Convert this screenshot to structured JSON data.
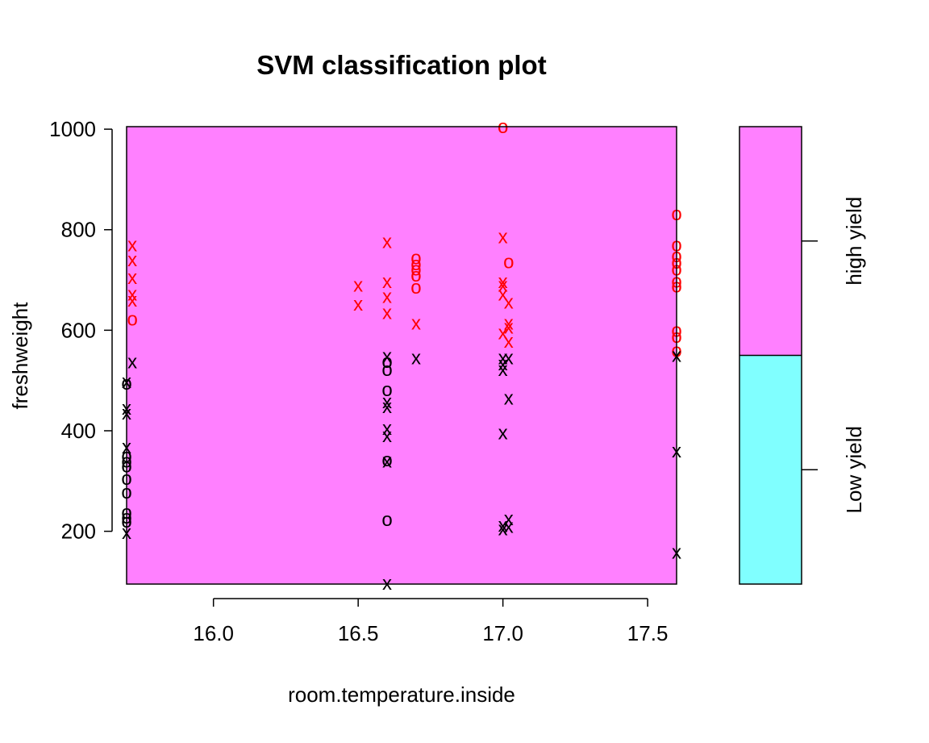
{
  "chart_data": {
    "type": "scatter",
    "title": "SVM classification plot",
    "xlabel": "room.temperature.inside",
    "ylabel": "freshweight",
    "xlim": [
      15.7,
      17.6
    ],
    "ylim": [
      95,
      1005
    ],
    "x_ticks": [
      "16.0",
      "16.5",
      "17.0",
      "17.5"
    ],
    "y_ticks": [
      "200",
      "400",
      "600",
      "800",
      "1000"
    ],
    "region_fill": "#ff80ff",
    "legend": {
      "position": "right",
      "classes": [
        {
          "label": "high yield",
          "color": "#ff80ff"
        },
        {
          "label": "Low yield",
          "color": "#80ffff"
        }
      ],
      "split_fraction": 0.5
    },
    "point_colors": {
      "high yield": "#ff0000",
      "Low yield": "#000000"
    },
    "point_symbols": {
      "support_vector": "x",
      "other": "o"
    },
    "series": [
      {
        "name": "high yield",
        "points": [
          [
            15.72,
            770,
            "x"
          ],
          [
            15.72,
            740,
            "x"
          ],
          [
            15.72,
            705,
            "x"
          ],
          [
            15.72,
            672,
            "x"
          ],
          [
            15.72,
            660,
            "x"
          ],
          [
            15.72,
            622,
            "o"
          ],
          [
            16.5,
            690,
            "x"
          ],
          [
            16.5,
            652,
            "x"
          ],
          [
            16.6,
            776,
            "x"
          ],
          [
            16.6,
            697,
            "x"
          ],
          [
            16.6,
            667,
            "x"
          ],
          [
            16.6,
            635,
            "x"
          ],
          [
            16.7,
            744,
            "o"
          ],
          [
            16.7,
            732,
            "o"
          ],
          [
            16.7,
            722,
            "o"
          ],
          [
            16.7,
            710,
            "o"
          ],
          [
            16.7,
            686,
            "o"
          ],
          [
            16.7,
            614,
            "x"
          ],
          [
            17.0,
            1005,
            "o"
          ],
          [
            17.0,
            786,
            "x"
          ],
          [
            17.02,
            736,
            "o"
          ],
          [
            17.0,
            697,
            "x"
          ],
          [
            17.0,
            690,
            "x"
          ],
          [
            17.0,
            672,
            "x"
          ],
          [
            17.02,
            656,
            "x"
          ],
          [
            17.02,
            614,
            "x"
          ],
          [
            17.02,
            606,
            "x"
          ],
          [
            17.0,
            595,
            "x"
          ],
          [
            17.02,
            578,
            "x"
          ],
          [
            17.6,
            832,
            "o"
          ],
          [
            17.6,
            770,
            "o"
          ],
          [
            17.6,
            748,
            "o"
          ],
          [
            17.6,
            735,
            "o"
          ],
          [
            17.6,
            722,
            "o"
          ],
          [
            17.6,
            698,
            "o"
          ],
          [
            17.6,
            688,
            "o"
          ],
          [
            17.6,
            600,
            "o"
          ],
          [
            17.6,
            588,
            "o"
          ],
          [
            17.6,
            560,
            "o"
          ]
        ]
      },
      {
        "name": "Low yield",
        "points": [
          [
            15.72,
            537,
            "x"
          ],
          [
            15.7,
            498,
            "x"
          ],
          [
            15.7,
            495,
            "o"
          ],
          [
            15.7,
            445,
            "x"
          ],
          [
            15.7,
            435,
            "x"
          ],
          [
            15.7,
            368,
            "x"
          ],
          [
            15.7,
            350,
            "o"
          ],
          [
            15.7,
            340,
            "o"
          ],
          [
            15.7,
            330,
            "o"
          ],
          [
            15.7,
            305,
            "o"
          ],
          [
            15.7,
            278,
            "o"
          ],
          [
            15.7,
            238,
            "o"
          ],
          [
            15.7,
            228,
            "o"
          ],
          [
            15.7,
            220,
            "o"
          ],
          [
            15.7,
            198,
            "x"
          ],
          [
            16.6,
            548,
            "x"
          ],
          [
            16.6,
            538,
            "o"
          ],
          [
            16.6,
            522,
            "o"
          ],
          [
            16.6,
            482,
            "o"
          ],
          [
            16.6,
            458,
            "x"
          ],
          [
            16.6,
            448,
            "x"
          ],
          [
            16.6,
            405,
            "x"
          ],
          [
            16.6,
            390,
            "x"
          ],
          [
            16.6,
            342,
            "o"
          ],
          [
            16.6,
            340,
            "x"
          ],
          [
            16.6,
            223,
            "o"
          ],
          [
            16.6,
            97,
            "x"
          ],
          [
            16.7,
            545,
            "x"
          ],
          [
            17.0,
            545,
            "x"
          ],
          [
            17.0,
            533,
            "x"
          ],
          [
            17.0,
            522,
            "x"
          ],
          [
            17.02,
            545,
            "x"
          ],
          [
            17.02,
            465,
            "x"
          ],
          [
            17.0,
            396,
            "x"
          ],
          [
            17.02,
            225,
            "x"
          ],
          [
            17.0,
            212,
            "x"
          ],
          [
            17.02,
            210,
            "x"
          ],
          [
            17.0,
            205,
            "x"
          ],
          [
            17.6,
            550,
            "x"
          ],
          [
            17.6,
            360,
            "x"
          ],
          [
            17.6,
            158,
            "x"
          ]
        ]
      }
    ]
  }
}
